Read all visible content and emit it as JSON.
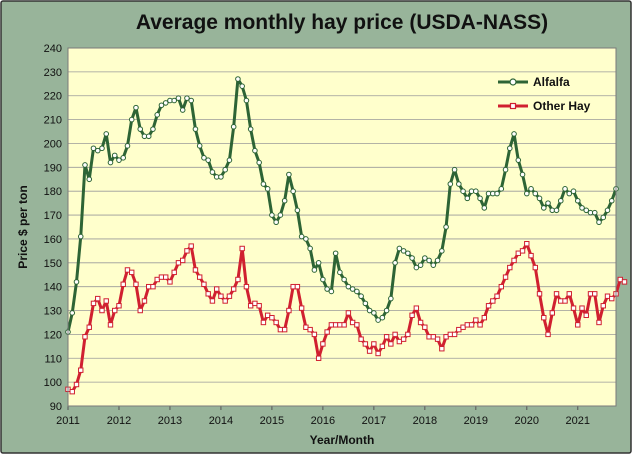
{
  "colors": {
    "frame_bg": "#98b49a",
    "plot_bg": "#ffffcc",
    "gridline": "#9a9a9a",
    "alfalfa": "#2d6435",
    "other_hay": "#d02030",
    "marker_fill": "#ffffff"
  },
  "chart_data": {
    "type": "line",
    "title": "Average monthly hay price (USDA-NASS)",
    "xlabel": "Year/Month",
    "ylabel": "Price $ per ton",
    "ylim": [
      90,
      240
    ],
    "y_ticks": [
      "90",
      "100",
      "110",
      "120",
      "130",
      "140",
      "150",
      "160",
      "170",
      "180",
      "190",
      "200",
      "210",
      "220",
      "230",
      "240"
    ],
    "x_tick_labels": [
      "2011",
      "2012",
      "2013",
      "2014",
      "2015",
      "2016",
      "2017",
      "2018",
      "2019",
      "2020",
      "2021"
    ],
    "grid": "horizontal",
    "legend_position": "top-right",
    "x_start": "2011-01",
    "series": [
      {
        "name": "Alfalfa",
        "values": [
          121,
          129,
          142,
          161,
          191,
          185,
          198,
          197,
          198,
          204,
          192,
          195,
          193,
          194,
          199,
          210,
          215,
          206,
          203,
          203,
          206,
          212,
          216,
          217,
          218,
          218,
          219,
          214,
          219,
          218,
          206,
          199,
          194,
          193,
          188,
          186,
          186,
          189,
          193,
          207,
          227,
          224,
          218,
          206,
          197,
          192,
          183,
          181,
          170,
          167,
          170,
          176,
          187,
          180,
          172,
          161,
          160,
          156,
          147,
          150,
          143,
          139,
          138,
          154,
          146,
          143,
          140,
          139,
          138,
          136,
          133,
          130,
          129,
          126,
          127,
          130,
          135,
          150,
          156,
          155,
          154,
          152,
          148,
          149,
          152,
          151,
          149,
          151,
          155,
          165,
          183,
          189,
          183,
          180,
          177,
          180,
          180,
          177,
          173,
          179,
          179,
          179,
          181,
          189,
          198,
          204,
          193,
          187,
          179,
          181,
          179,
          177,
          173,
          175,
          172,
          172,
          176,
          181,
          179,
          180,
          176,
          173,
          172,
          171,
          171,
          167,
          169,
          172,
          176,
          181
        ],
        "color": "#2d6435"
      },
      {
        "name": "Other Hay",
        "values": [
          97,
          96,
          99,
          105,
          119,
          123,
          133,
          135,
          130,
          134,
          124,
          130,
          132,
          141,
          147,
          146,
          141,
          130,
          134,
          140,
          140,
          143,
          144,
          144,
          142,
          146,
          150,
          151,
          155,
          157,
          147,
          144,
          141,
          137,
          134,
          139,
          136,
          134,
          136,
          139,
          143,
          156,
          140,
          132,
          133,
          132,
          125,
          128,
          127,
          125,
          122,
          122,
          130,
          140,
          140,
          131,
          123,
          122,
          120,
          110,
          116,
          121,
          124,
          124,
          124,
          124,
          129,
          125,
          124,
          118,
          116,
          113,
          116,
          112,
          115,
          119,
          116,
          120,
          117,
          118,
          120,
          128,
          131,
          125,
          123,
          119,
          119,
          118,
          114,
          119,
          120,
          120,
          122,
          123,
          124,
          124,
          126,
          124,
          127,
          132,
          134,
          136,
          140,
          144,
          148,
          151,
          154,
          155,
          158,
          153,
          148,
          137,
          127,
          120,
          129,
          137,
          134,
          134,
          137,
          131,
          124,
          131,
          128,
          137,
          137,
          125,
          132,
          136,
          135,
          137,
          143,
          142
        ]
      }
    ]
  }
}
